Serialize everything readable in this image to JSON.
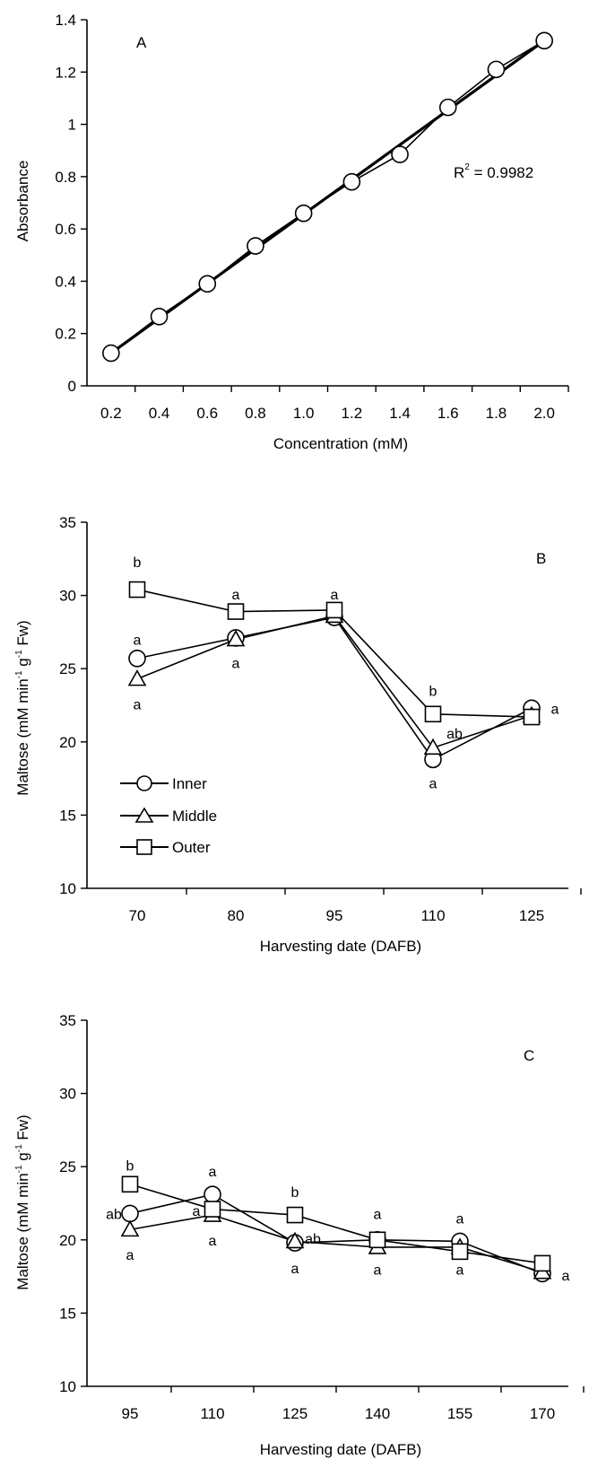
{
  "chart_data": [
    {
      "type": "line",
      "panel_label": "A",
      "xlabel": "Concentration (mM)",
      "ylabel": "Absorbance",
      "x_tick_labels": [
        "0.2",
        "0.4",
        "0.6",
        "0.8",
        "1.0",
        "1.2",
        "1.4",
        "1.6",
        "1.8",
        "2.0"
      ],
      "y_tick_labels": [
        "0",
        "0.2",
        "0.4",
        "0.6",
        "0.8",
        "1",
        "1.2",
        "1.4"
      ],
      "ylim": [
        0,
        1.4
      ],
      "xlim": [
        0.1,
        2.1
      ],
      "series": [
        {
          "marker": "circle",
          "x": [
            0.2,
            0.4,
            0.6,
            0.8,
            1.0,
            1.2,
            1.4,
            1.6,
            1.8,
            2.0
          ],
          "values": [
            0.125,
            0.265,
            0.39,
            0.535,
            0.66,
            0.78,
            0.885,
            1.065,
            1.21,
            1.32
          ]
        }
      ],
      "trendline": {
        "x": [
          0.2,
          2.0
        ],
        "values": [
          0.125,
          1.32
        ]
      },
      "r2_label": "R",
      "r2_sup": "2",
      "r2_value": " = 0.9982"
    },
    {
      "type": "line",
      "panel_label": "B",
      "xlabel": "Harvesting date (DAFB)",
      "ylabel_main": "Maltose (mM min",
      "ylabel_sup1": "-1",
      "ylabel_mid": " g",
      "ylabel_sup2": "-1",
      "ylabel_end": " Fw)",
      "categories": [
        "70",
        "80",
        "95",
        "110",
        "125"
      ],
      "y_tick_labels": [
        "10",
        "15",
        "20",
        "25",
        "30",
        "35"
      ],
      "ylim": [
        10,
        35
      ],
      "legend_position": "bottom-left",
      "series": [
        {
          "name": "Inner",
          "marker": "circle",
          "values": [
            25.7,
            27.1,
            28.5,
            18.8,
            22.3
          ]
        },
        {
          "name": "Middle",
          "marker": "triangle",
          "values": [
            24.3,
            27.0,
            28.6,
            19.6,
            21.8
          ]
        },
        {
          "name": "Outer",
          "marker": "square",
          "values": [
            30.4,
            28.9,
            29.0,
            21.9,
            21.7
          ]
        }
      ],
      "annotations": [
        {
          "text": "b",
          "x_index": 0,
          "y": 32.3
        },
        {
          "text": "a",
          "x_index": 0,
          "y": 27.0
        },
        {
          "text": "a",
          "x_index": 0,
          "y": 22.6
        },
        {
          "text": "a",
          "x_index": 1,
          "y": 30.1
        },
        {
          "text": "a",
          "x_index": 1,
          "y": 25.4
        },
        {
          "text": "a",
          "x_index": 2,
          "y": 30.1
        },
        {
          "text": "b",
          "x_index": 3,
          "y": 23.5
        },
        {
          "text": "ab",
          "x_index": 3,
          "y": 20.6
        },
        {
          "text": "a",
          "x_index": 3,
          "y": 17.2
        },
        {
          "text": "a",
          "x_index": 4,
          "y": 22.3
        }
      ]
    },
    {
      "type": "line",
      "panel_label": "C",
      "xlabel": "Harvesting date (DAFB)",
      "ylabel_main": "Maltose (mM min",
      "ylabel_sup1": "-1",
      "ylabel_mid": " g",
      "ylabel_sup2": "-1",
      "ylabel_end": " Fw)",
      "categories": [
        "95",
        "110",
        "125",
        "140",
        "155",
        "170"
      ],
      "y_tick_labels": [
        "10",
        "15",
        "20",
        "25",
        "30",
        "35"
      ],
      "ylim": [
        10,
        35
      ],
      "series": [
        {
          "name": "Inner",
          "marker": "circle",
          "values": [
            21.8,
            23.1,
            19.8,
            20.0,
            19.9,
            17.7
          ]
        },
        {
          "name": "Middle",
          "marker": "triangle",
          "values": [
            20.7,
            21.7,
            19.9,
            19.5,
            19.5,
            17.8
          ]
        },
        {
          "name": "Outer",
          "marker": "square",
          "values": [
            23.8,
            22.1,
            21.7,
            20.0,
            19.2,
            18.4
          ]
        }
      ],
      "annotations": [
        {
          "text": "b",
          "x_index": 0,
          "y": 25.1
        },
        {
          "text": "ab",
          "x_index": 0,
          "y": 21.8
        },
        {
          "text": "a",
          "x_index": 0,
          "y": 19.0
        },
        {
          "text": "a",
          "x_index": 1,
          "y": 24.7
        },
        {
          "text": "a",
          "x_index": 1,
          "y": 22.0
        },
        {
          "text": "a",
          "x_index": 1,
          "y": 20.0
        },
        {
          "text": "b",
          "x_index": 2,
          "y": 23.3
        },
        {
          "text": "ab",
          "x_index": 2,
          "y": 20.1
        },
        {
          "text": "a",
          "x_index": 2,
          "y": 18.1
        },
        {
          "text": "a",
          "x_index": 3,
          "y": 21.8
        },
        {
          "text": "a",
          "x_index": 3,
          "y": 18.0
        },
        {
          "text": "a",
          "x_index": 4,
          "y": 21.5
        },
        {
          "text": "a",
          "x_index": 4,
          "y": 18.0
        },
        {
          "text": "a",
          "x_index": 5,
          "y": 17.6
        }
      ]
    }
  ]
}
